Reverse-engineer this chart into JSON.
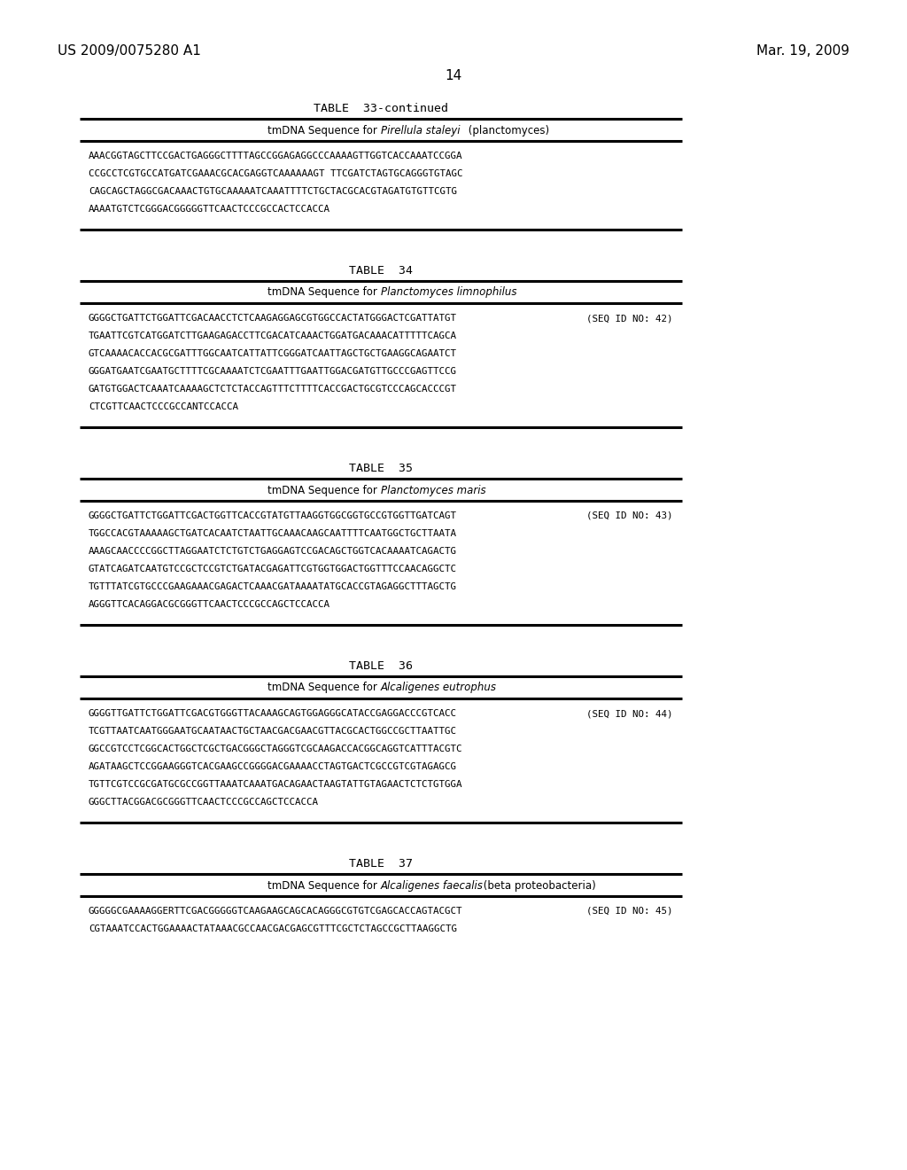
{
  "header_left": "US 2009/0075280 A1",
  "header_right": "Mar. 19, 2009",
  "page_number": "14",
  "tables": [
    {
      "title": "TABLE  33-continued",
      "subtitle_plain": "tmDNA Sequence for ",
      "subtitle_italic": "Pirellula staleyi",
      "subtitle_suffix": " (planctomyces)",
      "seq_id": "",
      "sequences": [
        "AAACGGTAGCTTCCGACTGAGGGCTTTTAGCCGGAGAGGCCCAAAAGTTGGTCACCAAATCCGGA",
        "CCGCCTCGTGCCATGATCGAAACGCACGAGGTCAAAAAAGT TTCGATCTAGTGCAGGGTGTAGC",
        "CAGCAGCTAGGCGACAAACTGTGCAAAAATCAAATTTTCTGCTACGCACGTAGATGTGTTCGTG",
        "AAAATGTCTCGGGACGGGGGTTCAACTCCCGCCACTCCACCA"
      ]
    },
    {
      "title": "TABLE  34",
      "subtitle_plain": "tmDNA Sequence for ",
      "subtitle_italic": "Planctomyces limnophilus",
      "subtitle_suffix": "",
      "seq_id": "(SEQ ID NO: 42)",
      "sequences": [
        "GGGGCTGATTCTGGATTCGACAACCTCTCAAGAGGAGCGTGGCCACTATGGGACTCGATTATGT",
        "TGAATTCGTCATGGATCTTGAAGAGACCTTCGACATCAAACTGGATGACAAACATTTTTCAGCA",
        "GTCAAAACACCACGCGATTTGGCAATCATTATTCGGGATCAATTAGCTGCTGAAGGCAGAATCT",
        "GGGATGAATCGAATGCTTTTCGCAAAATCTCGAATTTGAATTGGACGATGTTGCCCGAGTTCCG",
        "GATGTGGACTCAAATCAAAAGCTCTCTACCAGTTTCTTTTCACCGACTGCGTCCCAGCACCCGT",
        "CTCGTTCAACTCCCGCCANTCCACCA"
      ]
    },
    {
      "title": "TABLE  35",
      "subtitle_plain": "tmDNA Sequence for ",
      "subtitle_italic": "Planctomyces maris",
      "subtitle_suffix": "",
      "seq_id": "(SEQ ID NO: 43)",
      "sequences": [
        "GGGGCTGATTCTGGATTCGACTGGTTCACCGTATGTTAAGGTGGCGGTGCCGTGGTTGATCAGT",
        "TGGCCACGTAAAAAGCTGATCACAATCTAATTGCAAACAAGCAATTTTCAATGGCTGCTTAATA",
        "AAAGCAACCCCGGCTTAGGAATCTCTGTCTGAGGAGTCCGACAGCTGGTCACAAAATCAGACTG",
        "GTATCAGATCAATGTCCGCTCCGTCTGATACGAGATTCGTGGTGGACTGGTTTCCAACAGGCTC",
        "TGTTTATCGTGCCCGAAGAAACGAGACTCAAACGATAAAATATGCACCGTAGAGGCTTTAGCTG",
        "AGGGTTCACAGGACGCGGGTTCAACTCCCGCCAGCTCCACCA"
      ]
    },
    {
      "title": "TABLE  36",
      "subtitle_plain": "tmDNA Sequence for ",
      "subtitle_italic": "Alcaligenes eutrophus",
      "subtitle_suffix": "",
      "seq_id": "(SEQ ID NO: 44)",
      "sequences": [
        "GGGGTTGATTCTGGATTCGACGTGGGTTACAAAGCAGTGGAGGGCATACCGAGGACCCGTCACC",
        "TCGTTAATCAATGGGAATGCAATAACTGCTAACGACGAACGTTACGCACTGGCCGCTTAATTGC",
        "GGCCGTCCTCGGCACTGGCTCGCTGACGGGCTAGGGTCGCAAGACCACGGCAGGTCATTTACGTC",
        "AGATAAGCTCCGGAAGGGTCACGAAGCCGGGGACGAAAACCTAGTGACTCGCCGTCGTAGAGCG",
        "TGTTCGTCCGCGATGCGCCGGTTAAATCAAATGACAGAACTAAGTATTGTAGAACTCTCTGTGGA",
        "GGGCTTACGGACGCGGGTTCAACTCCCGCCAGCTCCACCA"
      ]
    },
    {
      "title": "TABLE  37",
      "subtitle_plain": "tmDNA Sequence for ",
      "subtitle_italic": "Alcaligenes faecalis",
      "subtitle_suffix": " (beta proteobacteria)",
      "seq_id": "(SEQ ID NO: 45)",
      "sequences": [
        "GGGGGCGAAAAGGERTTCGACGGGGGTCAAGAAGCAGCACAGGGCGTGTCGAGCACCAGTACGCT",
        "CGTAAATCCACTGGAAAACTATAAACGCCAACGACGAGCGTTTCGCTCTAGCCGCTTAAGGCTG"
      ]
    }
  ]
}
